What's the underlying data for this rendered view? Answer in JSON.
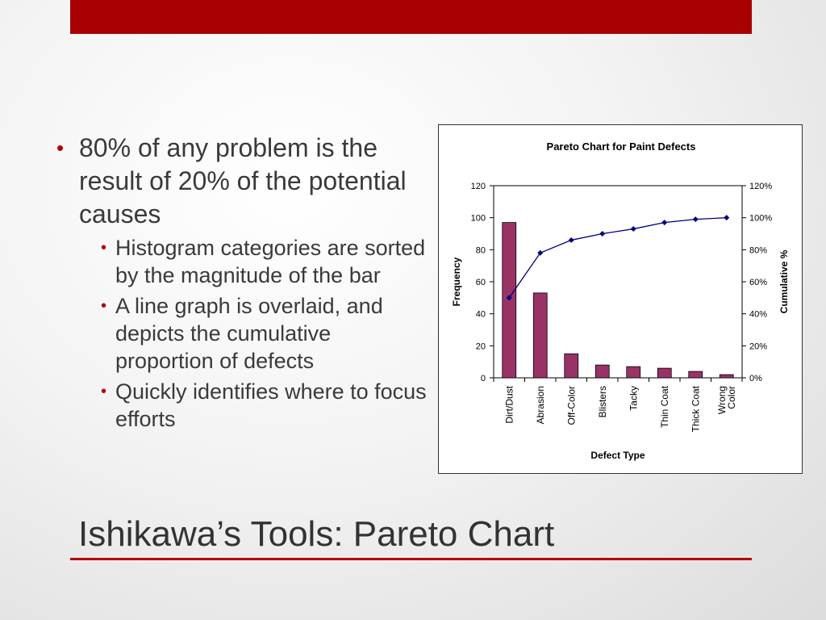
{
  "slide": {
    "title": "Ishikawa’s Tools:  Pareto Chart",
    "bullet_main": "80% of any problem is the result of 20% of the potential causes",
    "sub_bullets": [
      "Histogram categories are sorted by the magnitude of the bar",
      "A line graph is overlaid, and depicts the cumulative proportion of defects",
      "Quickly identifies where to focus efforts"
    ],
    "accent_color": "#b30000",
    "top_bar_color": "#a80000"
  },
  "chart_data": {
    "type": "bar",
    "title": "Pareto Chart for Paint Defects",
    "xlabel": "Defect Type",
    "ylabel": "Frequency",
    "y2label": "Cumulative %",
    "categories": [
      "Dirt/Dust",
      "Abrasion",
      "Off-Color",
      "Blisters",
      "Tacky",
      "Thin Coat",
      "Thick Coat",
      "Wrong Color"
    ],
    "category_lines": [
      [
        "Dirt/Dust"
      ],
      [
        "Abrasion"
      ],
      [
        "Off-Color"
      ],
      [
        "Blisters"
      ],
      [
        "Tacky"
      ],
      [
        "Thin Coat"
      ],
      [
        "Thick Coat"
      ],
      [
        "Wrong",
        "Color"
      ]
    ],
    "values": [
      97,
      53,
      15,
      8,
      7,
      6,
      4,
      2
    ],
    "cumulative_pct": [
      50,
      78,
      86,
      90,
      93,
      97,
      99,
      100
    ],
    "ylim": [
      0,
      120
    ],
    "y2lim": [
      0,
      120
    ],
    "y_ticks": [
      "0",
      "20",
      "40",
      "60",
      "80",
      "100",
      "120"
    ],
    "y2_ticks": [
      "0%",
      "20%",
      "40%",
      "60%",
      "80%",
      "100%",
      "120%"
    ],
    "grid": false,
    "bar_color": "#993366",
    "line_color": "#000080"
  }
}
